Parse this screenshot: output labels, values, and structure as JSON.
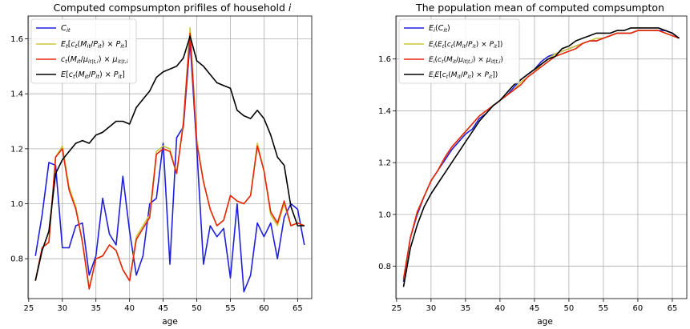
{
  "chart_data": [
    {
      "type": "line",
      "title": "Computed compsumpton prifiles of household i",
      "xlabel": "age",
      "ylabel": "",
      "xlim": [
        24.9,
        67.1
      ],
      "ylim": [
        0.655,
        1.683
      ],
      "xticks": [
        25,
        30,
        35,
        40,
        45,
        50,
        55,
        60,
        65
      ],
      "yticks": [
        0.8,
        1.0,
        1.2,
        1.4,
        1.6
      ],
      "ytick_labels": [
        "0.8",
        "1.0",
        "1.2",
        "1.4",
        "1.6"
      ],
      "grid": true,
      "legend_position": "top-left",
      "x": [
        26,
        27,
        28,
        29,
        30,
        31,
        32,
        33,
        34,
        35,
        36,
        37,
        38,
        39,
        40,
        41,
        42,
        43,
        44,
        45,
        46,
        47,
        48,
        49,
        50,
        51,
        52,
        53,
        54,
        55,
        56,
        57,
        58,
        59,
        60,
        61,
        62,
        63,
        64,
        65,
        66
      ],
      "series": [
        {
          "name": "C_it",
          "color": "#1f1fe0",
          "values": [
            0.81,
            0.96,
            1.15,
            1.14,
            0.84,
            0.84,
            0.92,
            0.93,
            0.74,
            0.81,
            1.02,
            0.89,
            0.85,
            1.1,
            0.9,
            0.74,
            0.81,
            1.0,
            1.02,
            1.22,
            0.78,
            1.24,
            1.28,
            1.59,
            1.2,
            0.78,
            0.92,
            0.88,
            0.91,
            0.73,
            1.0,
            0.68,
            0.74,
            0.93,
            0.88,
            0.93,
            0.8,
            0.95,
            1.0,
            0.98,
            0.85
          ]
        },
        {
          "name": "E_t[c_t(M_it/P_it) × P_it]",
          "color": "#c8c83a",
          "values": [
            0.72,
            0.84,
            0.86,
            1.17,
            1.21,
            1.06,
            0.99,
            0.86,
            0.69,
            0.8,
            0.81,
            0.85,
            0.83,
            0.76,
            0.72,
            0.88,
            0.92,
            0.96,
            1.19,
            1.21,
            1.2,
            1.11,
            1.3,
            1.64,
            1.23,
            1.08,
            0.98,
            0.92,
            0.94,
            1.03,
            1.01,
            1.0,
            1.03,
            1.22,
            1.12,
            0.96,
            0.92,
            1.0,
            0.92,
            0.93,
            0.92
          ]
        },
        {
          "name": "c_t(M_it/μ_it|t,i) × μ_it|t,i",
          "color": "#e8250c",
          "values": [
            0.72,
            0.84,
            0.86,
            1.17,
            1.2,
            1.05,
            0.98,
            0.86,
            0.69,
            0.8,
            0.81,
            0.85,
            0.83,
            0.76,
            0.72,
            0.87,
            0.91,
            0.95,
            1.18,
            1.2,
            1.19,
            1.11,
            1.29,
            1.62,
            1.22,
            1.08,
            0.98,
            0.92,
            0.94,
            1.03,
            1.01,
            1.0,
            1.03,
            1.21,
            1.12,
            0.97,
            0.93,
            1.01,
            0.92,
            0.93,
            0.92
          ]
        },
        {
          "name": "E[c_t(M_it/P_it) × P_it]",
          "color": "#000000",
          "values": [
            0.72,
            0.83,
            0.9,
            1.11,
            1.16,
            1.19,
            1.22,
            1.23,
            1.22,
            1.25,
            1.26,
            1.28,
            1.3,
            1.3,
            1.29,
            1.35,
            1.38,
            1.41,
            1.46,
            1.48,
            1.49,
            1.5,
            1.53,
            1.61,
            1.52,
            1.5,
            1.47,
            1.44,
            1.43,
            1.42,
            1.34,
            1.32,
            1.31,
            1.34,
            1.31,
            1.25,
            1.17,
            1.14,
            0.99,
            0.92,
            0.92
          ]
        }
      ],
      "legend": [
        {
          "base": "C",
          "sub": "it",
          "rest": "",
          "color": "#1f1fe0"
        },
        {
          "base": "E",
          "sub": "t",
          "rest": "[c",
          "sub2": "t",
          "tail": "(M",
          "sub3": "it",
          "tail2": "/P",
          "sub4": "it",
          "tail3": ") × P",
          "sub5": "it",
          "tail4": "]",
          "color": "#c8c83a"
        },
        {
          "plain": "c_t(M_it/μ_it|t,i) × μ_it|t,i",
          "color": "#e8250c"
        },
        {
          "plain": "E[c_t(M_it/P_it) × P_it]",
          "color": "#000000"
        }
      ]
    },
    {
      "type": "line",
      "title": "The population mean of computed compsumpton",
      "xlabel": "age",
      "ylabel": "",
      "xlim": [
        24.9,
        67.1
      ],
      "ylim": [
        0.675,
        1.766
      ],
      "xticks": [
        25,
        30,
        35,
        40,
        45,
        50,
        55,
        60,
        65
      ],
      "yticks": [
        0.8,
        1.0,
        1.2,
        1.4,
        1.6
      ],
      "ytick_labels": [
        "0.8",
        "1.0",
        "1.2",
        "1.4",
        "1.6"
      ],
      "grid": true,
      "legend_position": "top-left",
      "x": [
        26,
        27,
        28,
        29,
        30,
        31,
        32,
        33,
        34,
        35,
        36,
        37,
        38,
        39,
        40,
        41,
        42,
        43,
        44,
        45,
        46,
        47,
        48,
        49,
        50,
        51,
        52,
        53,
        54,
        55,
        56,
        57,
        58,
        59,
        60,
        61,
        62,
        63,
        64,
        65,
        66
      ],
      "series": [
        {
          "name": "E_i(C_it)",
          "color": "#1f1fe0",
          "values": [
            0.74,
            0.91,
            1.0,
            1.07,
            1.13,
            1.17,
            1.21,
            1.25,
            1.28,
            1.31,
            1.33,
            1.37,
            1.39,
            1.42,
            1.44,
            1.46,
            1.49,
            1.52,
            1.54,
            1.56,
            1.59,
            1.61,
            1.62,
            1.63,
            1.64,
            1.65,
            1.66,
            1.67,
            1.67,
            1.68,
            1.69,
            1.7,
            1.7,
            1.7,
            1.71,
            1.71,
            1.71,
            1.71,
            1.71,
            1.7,
            1.68
          ]
        },
        {
          "name": "E_i(E_t[c_t(M_it/P_it) × P_it])",
          "color": "#c8c83a",
          "values": [
            0.75,
            0.91,
            1.01,
            1.07,
            1.13,
            1.17,
            1.22,
            1.26,
            1.29,
            1.32,
            1.35,
            1.38,
            1.4,
            1.42,
            1.44,
            1.46,
            1.48,
            1.51,
            1.53,
            1.55,
            1.58,
            1.6,
            1.62,
            1.63,
            1.64,
            1.65,
            1.66,
            1.67,
            1.68,
            1.68,
            1.69,
            1.7,
            1.7,
            1.7,
            1.71,
            1.71,
            1.71,
            1.71,
            1.7,
            1.69,
            1.68
          ]
        },
        {
          "name": "E_i(c_t(M_it/μ_it|t,i) × μ_it|t,i)",
          "color": "#e8250c",
          "values": [
            0.75,
            0.91,
            1.01,
            1.07,
            1.13,
            1.17,
            1.22,
            1.26,
            1.29,
            1.32,
            1.35,
            1.38,
            1.4,
            1.42,
            1.44,
            1.46,
            1.48,
            1.5,
            1.53,
            1.55,
            1.57,
            1.59,
            1.61,
            1.62,
            1.63,
            1.64,
            1.66,
            1.67,
            1.67,
            1.68,
            1.69,
            1.7,
            1.7,
            1.7,
            1.71,
            1.71,
            1.71,
            1.71,
            1.7,
            1.69,
            1.68
          ]
        },
        {
          "name": "E_iE[c_t(M_it/P_it) × P_it])",
          "color": "#000000",
          "values": [
            0.72,
            0.87,
            0.96,
            1.03,
            1.08,
            1.12,
            1.16,
            1.2,
            1.24,
            1.28,
            1.32,
            1.36,
            1.39,
            1.42,
            1.44,
            1.47,
            1.5,
            1.52,
            1.54,
            1.56,
            1.58,
            1.6,
            1.61,
            1.64,
            1.65,
            1.67,
            1.68,
            1.69,
            1.7,
            1.7,
            1.7,
            1.71,
            1.71,
            1.72,
            1.72,
            1.72,
            1.72,
            1.72,
            1.71,
            1.7,
            1.68
          ]
        }
      ]
    }
  ]
}
